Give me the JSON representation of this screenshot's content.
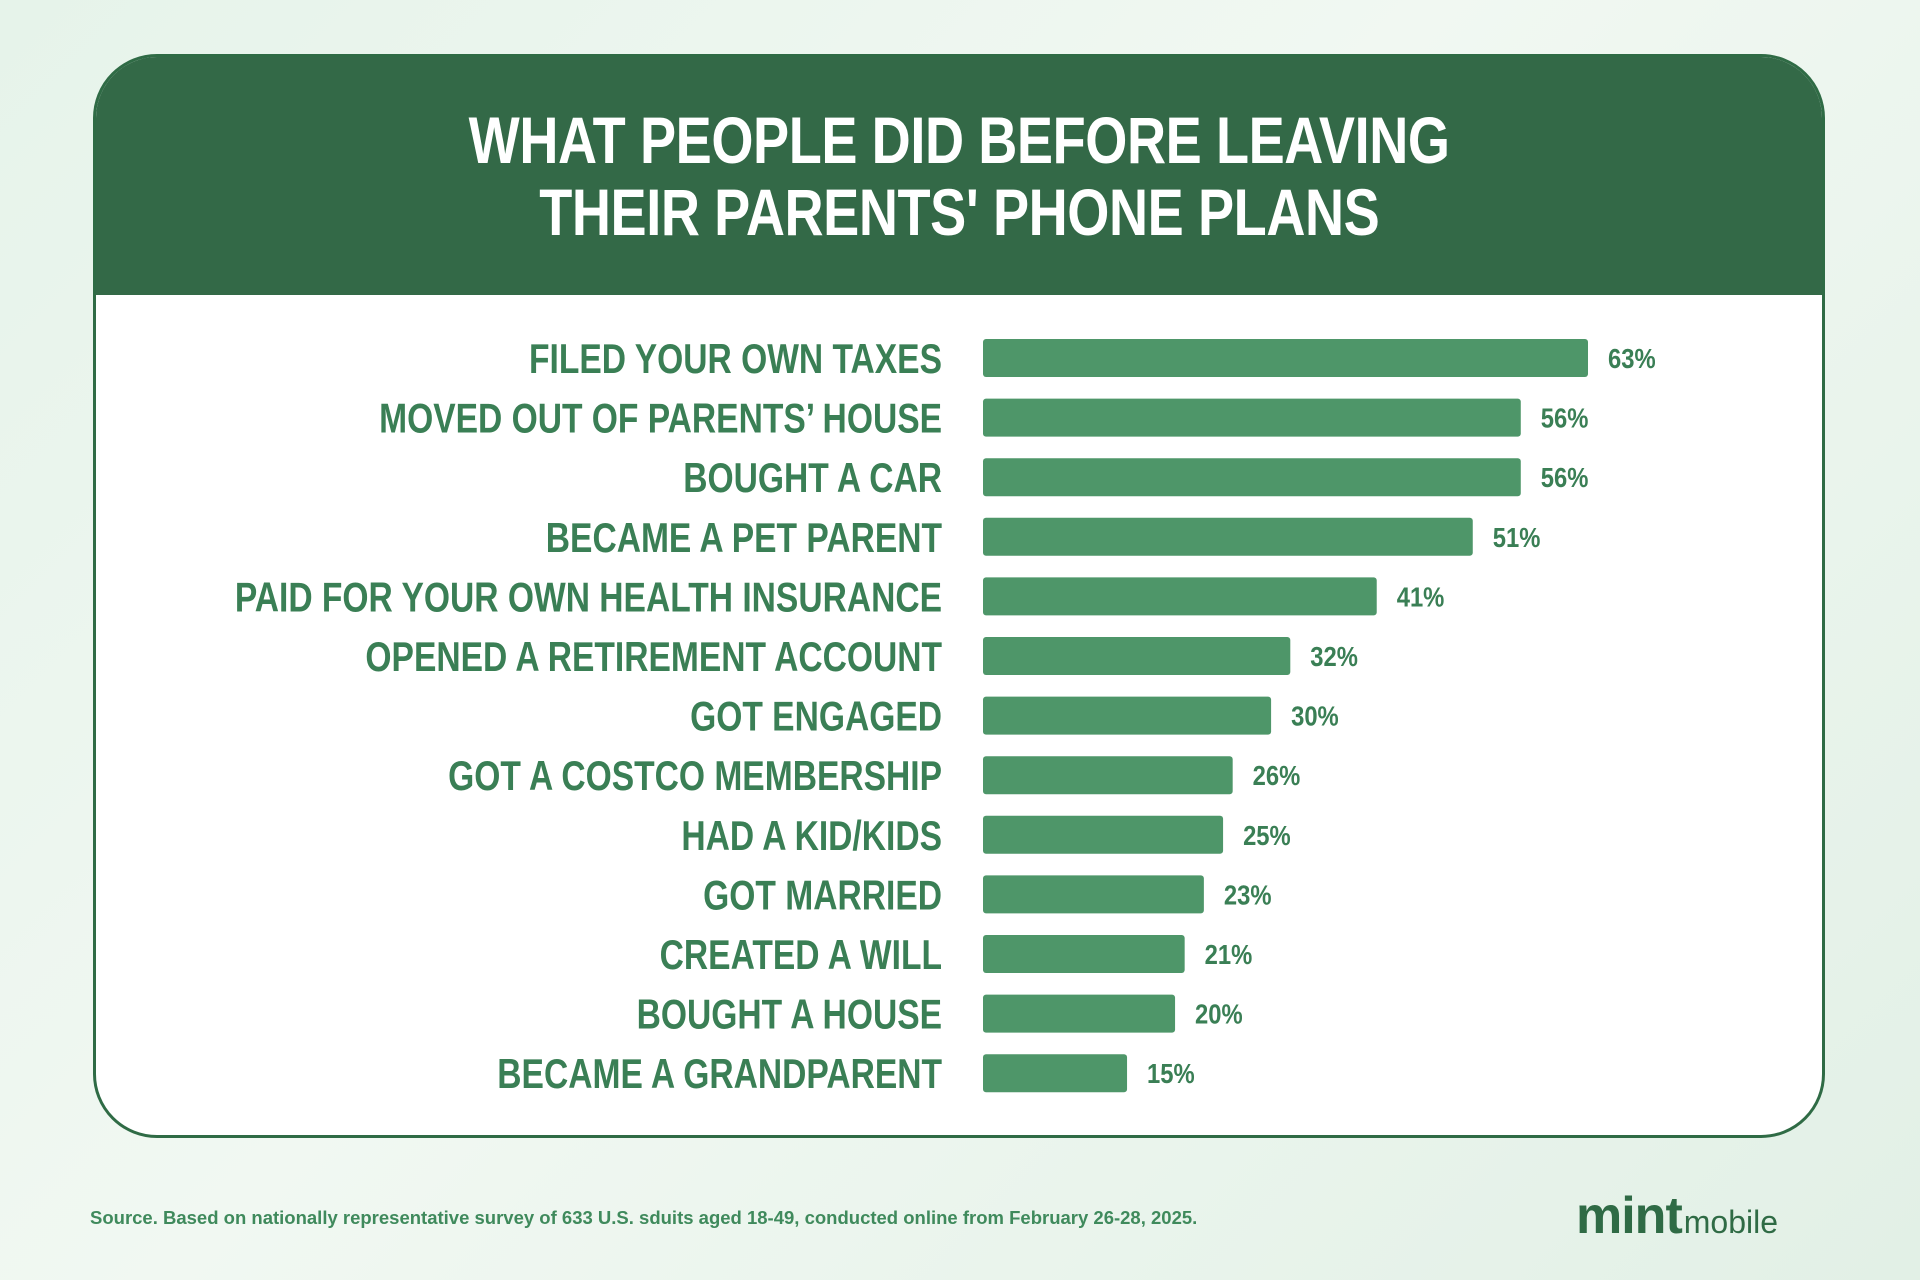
{
  "header": {
    "title_line1": "WHAT PEOPLE DID BEFORE LEAVING",
    "title_line2": "THEIR PARENTS' PHONE PLANS"
  },
  "chart_data": {
    "type": "bar",
    "orientation": "horizontal",
    "title": "WHAT PEOPLE DID BEFORE LEAVING THEIR PARENTS' PHONE PLANS",
    "xlabel": "",
    "ylabel": "",
    "xlim": [
      0,
      63
    ],
    "grid": false,
    "legend": "none",
    "bar_color": "#4e9669",
    "label_color": "#3a7f55",
    "categories": [
      "FILED YOUR OWN TAXES",
      "MOVED OUT OF PARENTS’ HOUSE",
      "BOUGHT A CAR",
      "BECAME A PET PARENT",
      "PAID FOR YOUR OWN HEALTH INSURANCE",
      "OPENED A RETIREMENT ACCOUNT",
      "GOT ENGAGED",
      "GOT A COSTCO MEMBERSHIP",
      "HAD A KID/KIDS",
      "GOT MARRIED",
      "CREATED A WILL",
      "BOUGHT A HOUSE",
      "BECAME A GRANDPARENT"
    ],
    "values": [
      63,
      56,
      56,
      51,
      41,
      32,
      30,
      26,
      25,
      23,
      21,
      20,
      15
    ],
    "value_labels": [
      "63%",
      "56%",
      "56%",
      "51%",
      "41%",
      "32%",
      "30%",
      "26%",
      "25%",
      "23%",
      "21%",
      "20%",
      "15%"
    ]
  },
  "footer": {
    "source": "Source. Based on nationally representative survey of 633 U.S. sduits aged 18-49, conducted online from February 26-28, 2025.",
    "logo_mint": "mint",
    "logo_mobile": "mobile"
  },
  "colors": {
    "header_bg": "#336947",
    "card_border": "#2f6b45",
    "bar": "#4e9669",
    "text_green": "#3a7f55"
  }
}
